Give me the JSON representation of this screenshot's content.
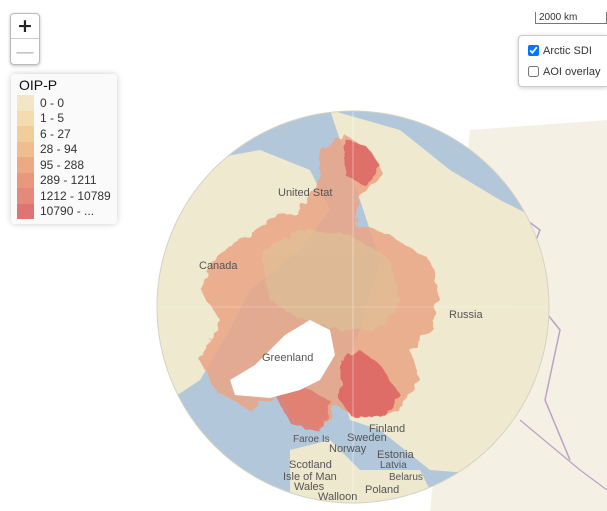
{
  "zoom": {
    "in_label": "+",
    "out_label": "—"
  },
  "legend": {
    "title": "OIP-P",
    "items": [
      {
        "label": "0 - 0",
        "color": "#f3e6c4"
      },
      {
        "label": "1 - 5",
        "color": "#f2dcb0"
      },
      {
        "label": "6 - 27",
        "color": "#f1cd9a"
      },
      {
        "label": "28 - 94",
        "color": "#efbd8e"
      },
      {
        "label": "95 - 288",
        "color": "#ecaa84"
      },
      {
        "label": "289 - 1211",
        "color": "#e8997d"
      },
      {
        "label": "1212 - 10789",
        "color": "#e48a7a"
      },
      {
        "label": "10790 - ...",
        "color": "#de7474"
      }
    ]
  },
  "scale": {
    "label": "2000 km"
  },
  "layers": [
    {
      "label": "Arctic SDI",
      "checked": true
    },
    {
      "label": "AOI overlay",
      "checked": false
    }
  ],
  "map": {
    "places": [
      {
        "name": "United States",
        "text": "United Stat"
      },
      {
        "name": "Canada",
        "text": "Canada"
      },
      {
        "name": "Greenland",
        "text": "Greenland"
      },
      {
        "name": "Russia",
        "text": "Russia"
      },
      {
        "name": "Finland",
        "text": "Finland"
      },
      {
        "name": "Sweden",
        "text": "Sweden"
      },
      {
        "name": "Norway",
        "text": "Norway"
      },
      {
        "name": "Estonia",
        "text": "Estonia"
      },
      {
        "name": "Latvia",
        "text": "Latvia"
      },
      {
        "name": "Belarus",
        "text": "Belarus"
      },
      {
        "name": "Faroe Is",
        "text": "Faroe Is"
      },
      {
        "name": "Scotland",
        "text": "Scotland"
      },
      {
        "name": "Isle of Man",
        "text": "Isle of Man"
      },
      {
        "name": "Wales",
        "text": "Wales"
      },
      {
        "name": "Poland",
        "text": "Poland"
      },
      {
        "name": "Walloon",
        "text": "Walloon"
      }
    ],
    "colors": {
      "ocean": "#a9c1d6",
      "land": "#f1ecd4",
      "ice": "#ffffff",
      "high_density": "#de6a68",
      "mid_density": "#e89a80"
    }
  }
}
